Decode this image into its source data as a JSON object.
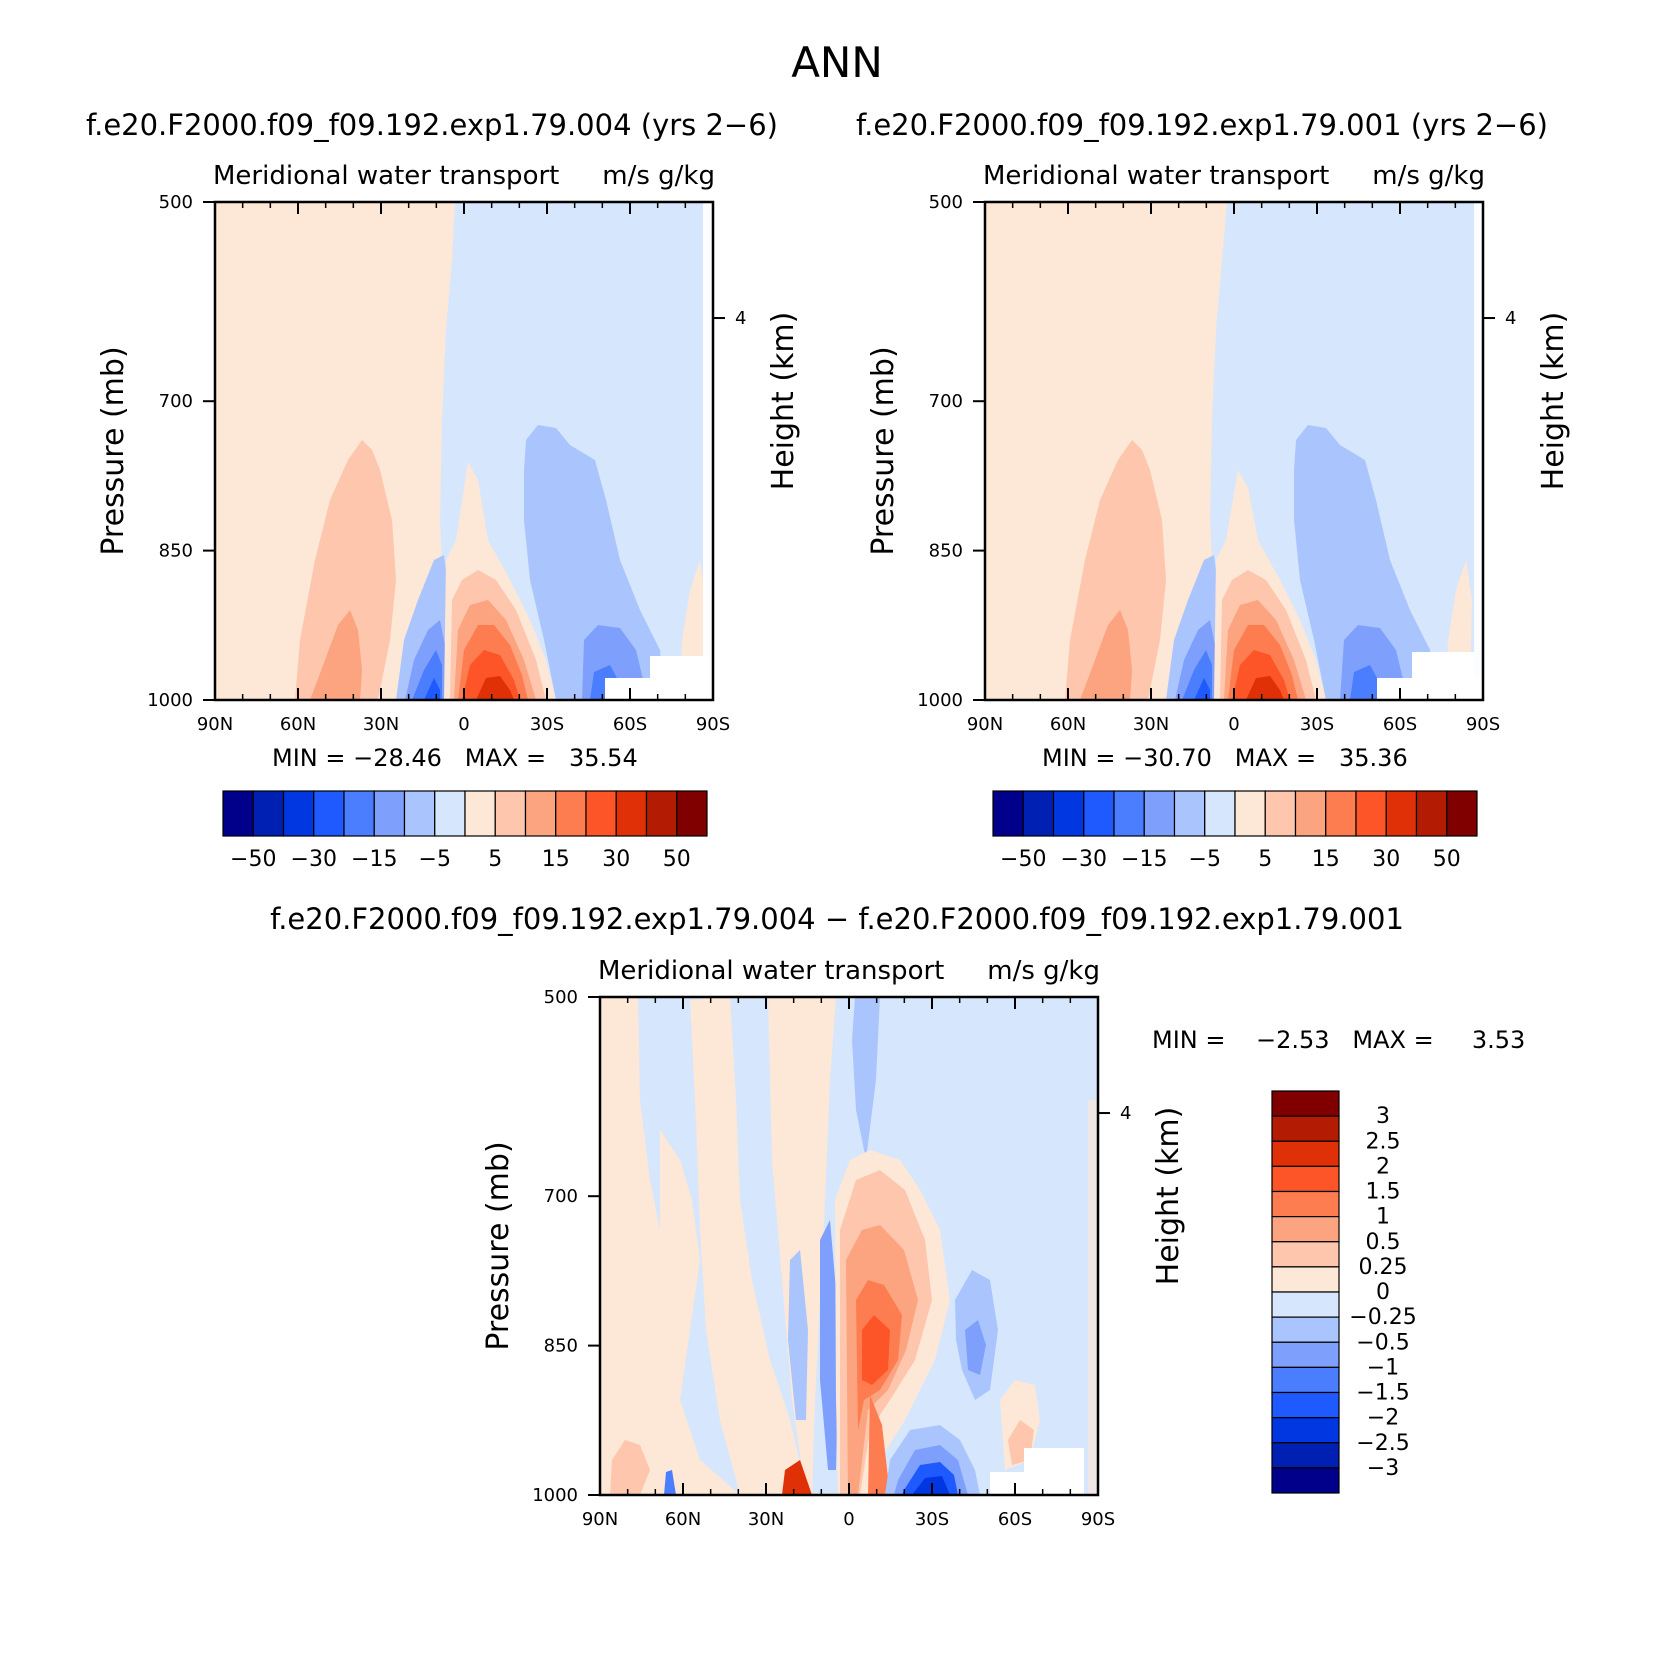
{
  "page_title": "ANN",
  "panels": [
    {
      "title": "f.e20.F2000.f09_f09.192.exp1.79.004 (yrs 2−6)",
      "subtitle_left": "Meridional water transport",
      "subtitle_right": "m/s g/kg",
      "stats": "MIN = −28.46   MAX =   35.54"
    },
    {
      "title": "f.e20.F2000.f09_f09.192.exp1.79.001 (yrs 2−6)",
      "subtitle_left": "Meridional water transport",
      "subtitle_right": "m/s g/kg",
      "stats": "MIN = −30.70   MAX =   35.36"
    },
    {
      "title": "f.e20.F2000.f09_f09.192.exp1.79.004 − f.e20.F2000.f09_f09.192.exp1.79.001",
      "subtitle_left": "Meridional water transport",
      "subtitle_right": "m/s g/kg",
      "stats": "MIN =    −2.53   MAX =     3.53"
    }
  ],
  "axes": {
    "ylabel": "Pressure (mb)",
    "y2label": "Height (km)",
    "y_ticks": [
      "500",
      "700",
      "850",
      "1000"
    ],
    "y2_ticks": [
      "4"
    ],
    "x_ticks": [
      "90N",
      "60N",
      "30N",
      "0",
      "30S",
      "60S",
      "90S"
    ]
  },
  "colorbars": {
    "main": {
      "colors": [
        "#00008b",
        "#0020b4",
        "#0037e0",
        "#1e5aff",
        "#4b7dff",
        "#7ea0fc",
        "#aac5fd",
        "#d6e7fd",
        "#fde7d6",
        "#fdc6ad",
        "#fca380",
        "#fd7d50",
        "#fd5527",
        "#df3008",
        "#b31c02",
        "#800000"
      ],
      "labels": [
        "−50",
        "−30",
        "−15",
        "−5",
        "5",
        "15",
        "30",
        "50"
      ]
    },
    "diff": {
      "colors": [
        "#800000",
        "#b31c02",
        "#df3008",
        "#fd5527",
        "#fd7d50",
        "#fca380",
        "#fdc6ad",
        "#fde7d6",
        "#d6e7fd",
        "#aac5fd",
        "#7ea0fc",
        "#4b7dff",
        "#1e5aff",
        "#0037e0",
        "#0020b4",
        "#00008b"
      ],
      "labels": [
        "3",
        "2.5",
        "2",
        "1.5",
        "1",
        "0.5",
        "0.25",
        "0",
        "−0.25",
        "−0.5",
        "−1",
        "−1.5",
        "−2",
        "−2.5",
        "−3"
      ]
    }
  },
  "chart_data": [
    {
      "type": "heatmap",
      "title": "f.e20.F2000.f09_f09.192.exp1.79.004 (yrs 2−6)",
      "variable": "Meridional water transport",
      "units": "m/s g/kg",
      "xlabel": "",
      "ylabel": "Pressure (mb)",
      "y2label": "Height (km)",
      "x_ticks": [
        "90N",
        "60N",
        "30N",
        "0",
        "30S",
        "60S",
        "90S"
      ],
      "y_ticks": [
        500,
        700,
        850,
        1000
      ],
      "min": -28.46,
      "max": 35.54,
      "contour_levels": [
        -50,
        -40,
        -30,
        -20,
        -15,
        -10,
        -5,
        0,
        5,
        10,
        15,
        20,
        30,
        40,
        50
      ],
      "features": [
        {
          "sign": "positive",
          "lat_range": [
            "90N",
            "5N"
          ],
          "p_range": [
            500,
            1000
          ],
          "value": 2
        },
        {
          "sign": "positive",
          "lat_range": [
            "50N",
            "25N"
          ],
          "p_range": [
            740,
            1000
          ],
          "peak": 10
        },
        {
          "sign": "negative",
          "lat_range": [
            "25N",
            "3N"
          ],
          "p_range": [
            880,
            1000
          ],
          "peak": -28.46
        },
        {
          "sign": "positive",
          "lat_range": [
            "0",
            "30S"
          ],
          "p_range": [
            780,
            1000
          ],
          "peak": 35.54
        },
        {
          "sign": "negative",
          "lat_range": [
            "30S",
            "60S"
          ],
          "p_range": [
            720,
            1000
          ],
          "peak": -15
        }
      ]
    },
    {
      "type": "heatmap",
      "title": "f.e20.F2000.f09_f09.192.exp1.79.001 (yrs 2−6)",
      "variable": "Meridional water transport",
      "units": "m/s g/kg",
      "xlabel": "",
      "ylabel": "Pressure (mb)",
      "y2label": "Height (km)",
      "x_ticks": [
        "90N",
        "60N",
        "30N",
        "0",
        "30S",
        "60S",
        "90S"
      ],
      "y_ticks": [
        500,
        700,
        850,
        1000
      ],
      "min": -30.7,
      "max": 35.36,
      "contour_levels": [
        -50,
        -40,
        -30,
        -20,
        -15,
        -10,
        -5,
        0,
        5,
        10,
        15,
        20,
        30,
        40,
        50
      ],
      "features": [
        {
          "sign": "positive",
          "lat_range": [
            "90N",
            "5N"
          ],
          "p_range": [
            500,
            1000
          ],
          "value": 2
        },
        {
          "sign": "positive",
          "lat_range": [
            "50N",
            "25N"
          ],
          "p_range": [
            740,
            1000
          ],
          "peak": 10
        },
        {
          "sign": "negative",
          "lat_range": [
            "25N",
            "3N"
          ],
          "p_range": [
            880,
            1000
          ],
          "peak": -30.7
        },
        {
          "sign": "positive",
          "lat_range": [
            "0",
            "30S"
          ],
          "p_range": [
            780,
            1000
          ],
          "peak": 35.36
        },
        {
          "sign": "negative",
          "lat_range": [
            "30S",
            "60S"
          ],
          "p_range": [
            720,
            1000
          ],
          "peak": -15
        }
      ]
    },
    {
      "type": "heatmap",
      "title": "f.e20.F2000.f09_f09.192.exp1.79.004 − f.e20.F2000.f09_f09.192.exp1.79.001",
      "variable": "Meridional water transport",
      "units": "m/s g/kg",
      "xlabel": "",
      "ylabel": "Pressure (mb)",
      "y2label": "Height (km)",
      "x_ticks": [
        "90N",
        "60N",
        "30N",
        "0",
        "30S",
        "60S",
        "90S"
      ],
      "y_ticks": [
        500,
        700,
        850,
        1000
      ],
      "min": -2.53,
      "max": 3.53,
      "contour_levels": [
        -3,
        -2.5,
        -2,
        -1.5,
        -1,
        -0.5,
        -0.25,
        0,
        0.25,
        0.5,
        1,
        1.5,
        2,
        2.5,
        3
      ],
      "features": [
        {
          "sign": "positive",
          "lat_range": [
            "0",
            "25S"
          ],
          "p_range": [
            720,
            1000
          ],
          "peak": 3.53
        },
        {
          "sign": "negative",
          "lat_range": [
            "20S",
            "45S"
          ],
          "p_range": [
            930,
            1000
          ],
          "peak": -2.53
        },
        {
          "sign": "negative",
          "lat_range": [
            "25N",
            "5N"
          ],
          "p_range": [
            800,
            1000
          ],
          "peak": -1.5
        },
        {
          "sign": "negative",
          "lat_range": [
            "35S",
            "60S"
          ],
          "p_range": [
            800,
            960
          ],
          "peak": -1
        }
      ]
    }
  ]
}
